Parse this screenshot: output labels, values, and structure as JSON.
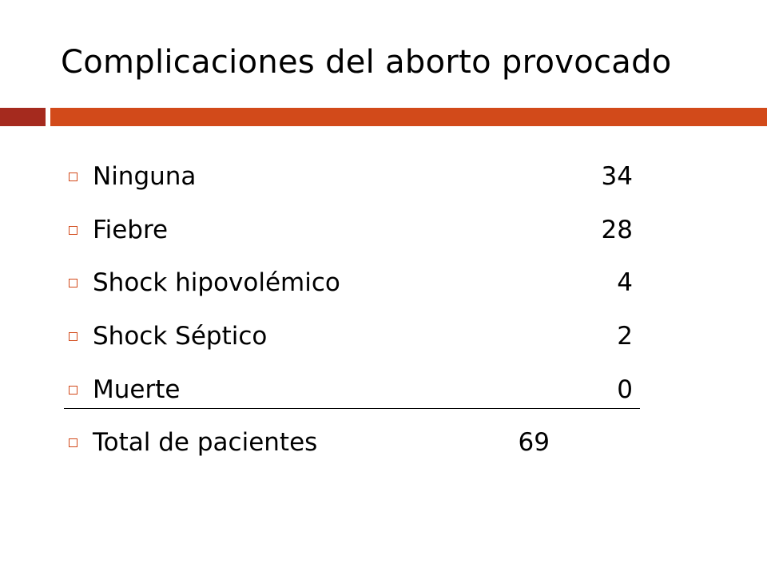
{
  "slide": {
    "title": "Complicaciones del aborto provocado",
    "accent_color": "#d24a1a",
    "accent_dark_color": "#a52a1e"
  },
  "items": [
    {
      "label": "Ninguna",
      "value": "34"
    },
    {
      "label": "Fiebre",
      "value": "28"
    },
    {
      "label": "Shock hipovolémico",
      "value": "4"
    },
    {
      "label": "Shock Séptico",
      "value": "2"
    },
    {
      "label": "Muerte",
      "value": "0"
    }
  ],
  "total": {
    "label": "Total de pacientes",
    "value": "69"
  }
}
